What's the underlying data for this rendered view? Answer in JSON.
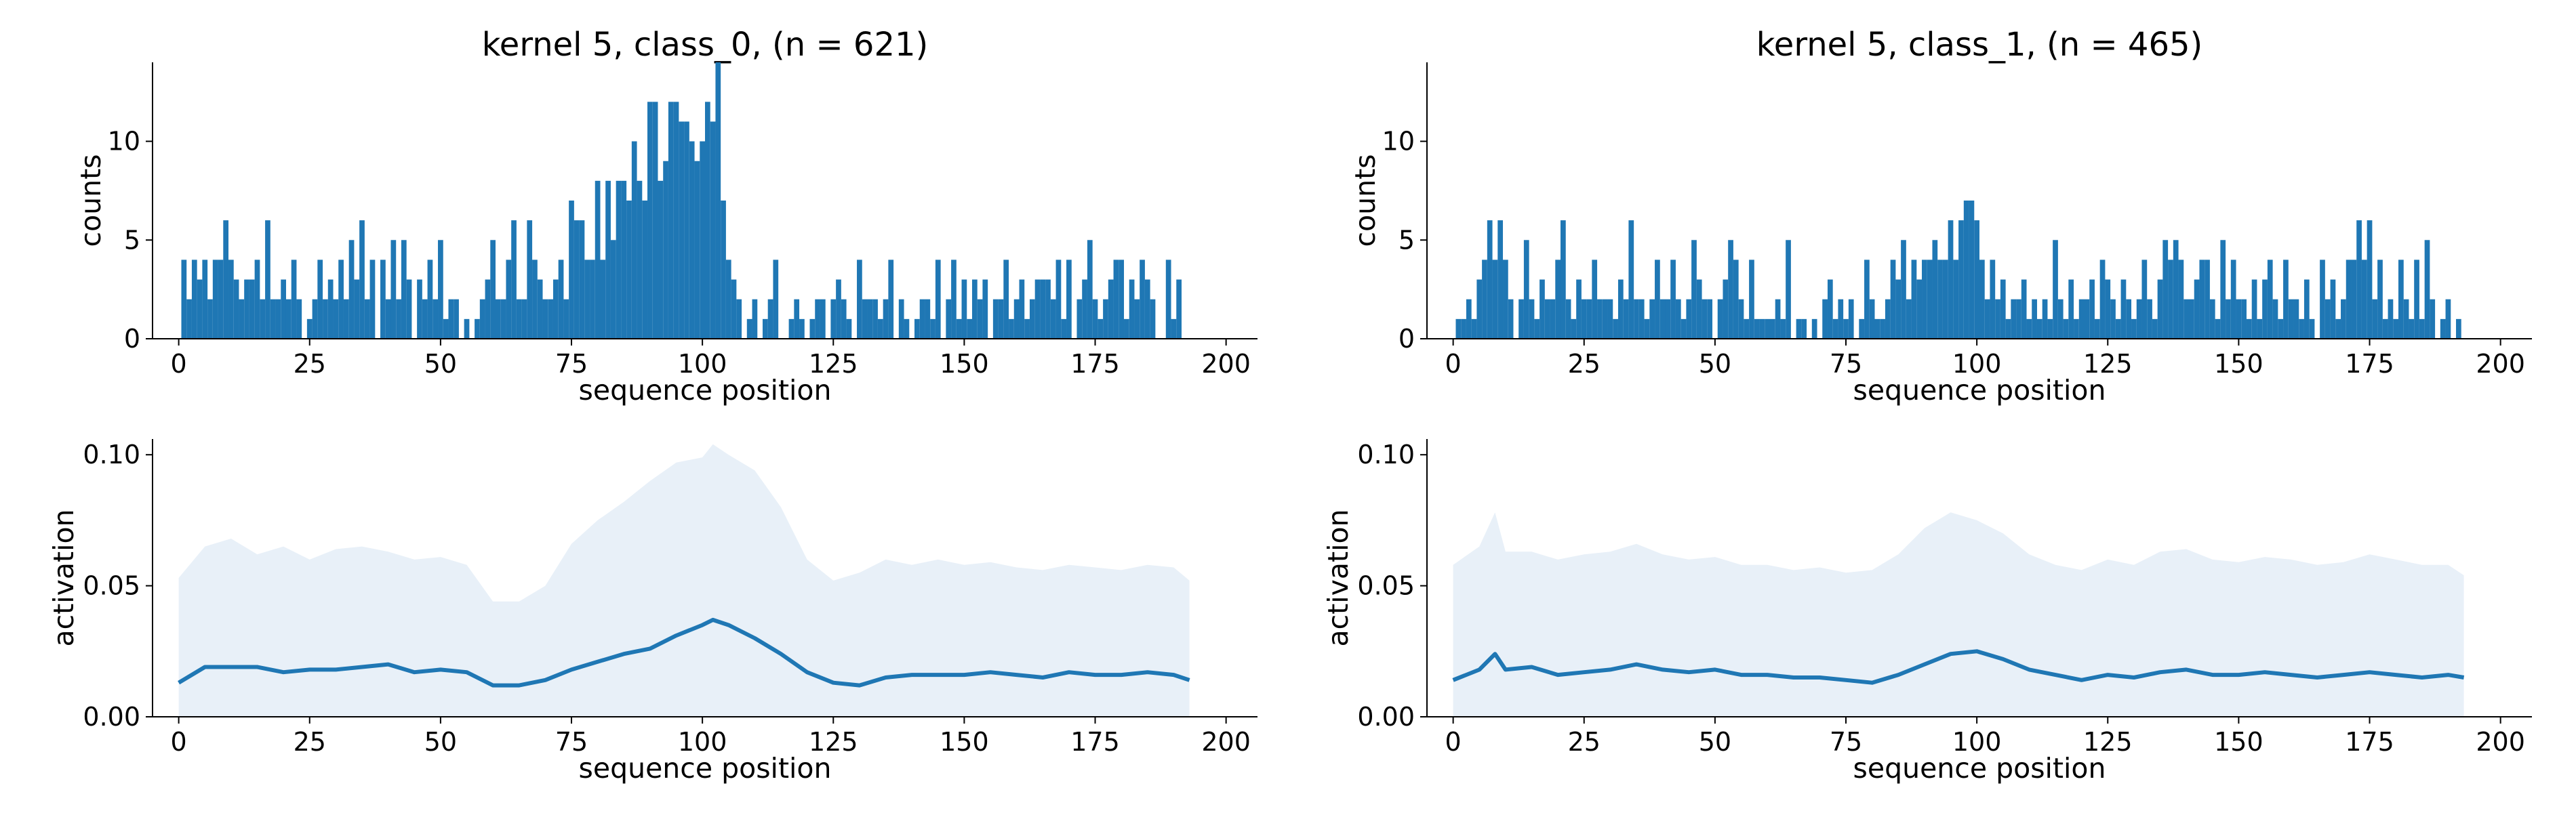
{
  "chart_data": [
    {
      "type": "bar",
      "title": "kernel 5, class_0, (n = 621)",
      "xlabel": "sequence position",
      "ylabel": "counts",
      "xlim": [
        -5,
        206
      ],
      "ylim": [
        0,
        14
      ],
      "xticks": [
        0,
        25,
        50,
        75,
        100,
        125,
        150,
        175,
        200
      ],
      "yticks": [
        0,
        5,
        10
      ],
      "color": "#1f77b4",
      "x": [
        1,
        2,
        3,
        4,
        5,
        6,
        7,
        8,
        9,
        10,
        11,
        12,
        13,
        14,
        15,
        16,
        17,
        18,
        19,
        20,
        21,
        22,
        23,
        24,
        25,
        26,
        27,
        28,
        29,
        30,
        31,
        32,
        33,
        34,
        35,
        36,
        37,
        38,
        39,
        40,
        41,
        42,
        43,
        44,
        45,
        46,
        47,
        48,
        49,
        50,
        51,
        52,
        53,
        54,
        55,
        56,
        57,
        58,
        59,
        60,
        61,
        62,
        63,
        64,
        65,
        66,
        67,
        68,
        69,
        70,
        71,
        72,
        73,
        74,
        75,
        76,
        77,
        78,
        79,
        80,
        81,
        82,
        83,
        84,
        85,
        86,
        87,
        88,
        89,
        90,
        91,
        92,
        93,
        94,
        95,
        96,
        97,
        98,
        99,
        100,
        101,
        102,
        103,
        104,
        105,
        106,
        107,
        108,
        109,
        110,
        111,
        112,
        113,
        114,
        115,
        116,
        117,
        118,
        119,
        120,
        121,
        122,
        123,
        124,
        125,
        126,
        127,
        128,
        129,
        130,
        131,
        132,
        133,
        134,
        135,
        136,
        137,
        138,
        139,
        140,
        141,
        142,
        143,
        144,
        145,
        146,
        147,
        148,
        149,
        150,
        151,
        152,
        153,
        154,
        155,
        156,
        157,
        158,
        159,
        160,
        161,
        162,
        163,
        164,
        165,
        166,
        167,
        168,
        169,
        170,
        171,
        172,
        173,
        174,
        175,
        176,
        177,
        178,
        179,
        180,
        181,
        182,
        183,
        184,
        185,
        186,
        187,
        188,
        189,
        190,
        191,
        192
      ],
      "values": [
        4,
        2,
        4,
        3,
        4,
        2,
        4,
        4,
        6,
        4,
        3,
        2,
        3,
        3,
        4,
        2,
        6,
        2,
        2,
        3,
        2,
        4,
        2,
        0,
        1,
        2,
        4,
        2,
        3,
        2,
        4,
        2,
        5,
        3,
        6,
        2,
        4,
        0,
        4,
        2,
        5,
        2,
        5,
        3,
        0,
        3,
        2,
        4,
        2,
        5,
        1,
        2,
        2,
        0,
        1,
        0,
        1,
        2,
        3,
        5,
        2,
        2,
        4,
        6,
        2,
        2,
        6,
        4,
        3,
        2,
        2,
        3,
        4,
        2,
        7,
        6,
        6,
        4,
        4,
        8,
        4,
        8,
        5,
        8,
        8,
        7,
        10,
        8,
        7,
        12,
        12,
        8,
        9,
        12,
        12,
        11,
        11,
        10,
        9,
        10,
        12,
        11,
        14,
        7,
        4,
        3,
        2,
        0,
        1,
        2,
        0,
        1,
        2,
        4,
        0,
        0,
        1,
        2,
        1,
        0,
        1,
        2,
        2,
        0,
        2,
        3,
        2,
        1,
        0,
        4,
        2,
        2,
        2,
        1,
        2,
        4,
        0,
        2,
        1,
        0,
        1,
        2,
        2,
        1,
        4,
        0,
        2,
        4,
        1,
        3,
        1,
        3,
        2,
        3,
        0,
        2,
        2,
        4,
        1,
        2,
        3,
        1,
        2,
        3,
        3,
        3,
        2,
        4,
        1,
        4,
        0,
        2,
        3,
        5,
        2,
        1,
        2,
        3,
        4,
        4,
        1,
        3,
        2,
        4,
        3,
        2,
        0,
        0,
        4,
        1,
        3,
        0
      ]
    },
    {
      "type": "bar",
      "title": "kernel 5, class_1, (n = 465)",
      "xlabel": "sequence position",
      "ylabel": "counts",
      "xlim": [
        -5,
        206
      ],
      "ylim": [
        0,
        14
      ],
      "xticks": [
        0,
        25,
        50,
        75,
        100,
        125,
        150,
        175,
        200
      ],
      "yticks": [
        0,
        5,
        10
      ],
      "color": "#1f77b4",
      "x": [
        1,
        2,
        3,
        4,
        5,
        6,
        7,
        8,
        9,
        10,
        11,
        12,
        13,
        14,
        15,
        16,
        17,
        18,
        19,
        20,
        21,
        22,
        23,
        24,
        25,
        26,
        27,
        28,
        29,
        30,
        31,
        32,
        33,
        34,
        35,
        36,
        37,
        38,
        39,
        40,
        41,
        42,
        43,
        44,
        45,
        46,
        47,
        48,
        49,
        50,
        51,
        52,
        53,
        54,
        55,
        56,
        57,
        58,
        59,
        60,
        61,
        62,
        63,
        64,
        65,
        66,
        67,
        68,
        69,
        70,
        71,
        72,
        73,
        74,
        75,
        76,
        77,
        78,
        79,
        80,
        81,
        82,
        83,
        84,
        85,
        86,
        87,
        88,
        89,
        90,
        91,
        92,
        93,
        94,
        95,
        96,
        97,
        98,
        99,
        100,
        101,
        102,
        103,
        104,
        105,
        106,
        107,
        108,
        109,
        110,
        111,
        112,
        113,
        114,
        115,
        116,
        117,
        118,
        119,
        120,
        121,
        122,
        123,
        124,
        125,
        126,
        127,
        128,
        129,
        130,
        131,
        132,
        133,
        134,
        135,
        136,
        137,
        138,
        139,
        140,
        141,
        142,
        143,
        144,
        145,
        146,
        147,
        148,
        149,
        150,
        151,
        152,
        153,
        154,
        155,
        156,
        157,
        158,
        159,
        160,
        161,
        162,
        163,
        164,
        165,
        166,
        167,
        168,
        169,
        170,
        171,
        172,
        173,
        174,
        175,
        176,
        177,
        178,
        179,
        180,
        181,
        182,
        183,
        184,
        185,
        186,
        187,
        188,
        189,
        190,
        191,
        192
      ],
      "values": [
        1,
        1,
        2,
        1,
        3,
        4,
        6,
        4,
        6,
        4,
        2,
        0,
        2,
        5,
        2,
        1,
        3,
        2,
        2,
        4,
        6,
        2,
        1,
        3,
        2,
        2,
        4,
        2,
        2,
        2,
        1,
        3,
        2,
        6,
        2,
        2,
        1,
        2,
        4,
        2,
        2,
        4,
        2,
        1,
        2,
        5,
        3,
        2,
        2,
        0,
        2,
        3,
        5,
        4,
        2,
        1,
        4,
        1,
        1,
        1,
        1,
        2,
        1,
        5,
        0,
        1,
        1,
        0,
        1,
        0,
        2,
        3,
        1,
        2,
        1,
        2,
        0,
        1,
        4,
        2,
        1,
        1,
        2,
        4,
        3,
        5,
        2,
        4,
        3,
        4,
        4,
        5,
        4,
        4,
        6,
        4,
        6,
        7,
        7,
        6,
        4,
        2,
        4,
        2,
        3,
        1,
        2,
        2,
        3,
        1,
        2,
        1,
        2,
        1,
        5,
        2,
        1,
        3,
        1,
        2,
        2,
        3,
        1,
        4,
        3,
        2,
        1,
        3,
        2,
        1,
        2,
        4,
        2,
        1,
        3,
        5,
        4,
        5,
        4,
        2,
        2,
        3,
        4,
        4,
        2,
        1,
        5,
        2,
        4,
        2,
        2,
        1,
        3,
        1,
        3,
        4,
        2,
        1,
        4,
        2,
        2,
        1,
        3,
        1,
        0,
        4,
        2,
        3,
        1,
        2,
        4,
        4,
        6,
        4,
        6,
        2,
        4,
        1,
        2,
        1,
        4,
        2,
        1,
        4,
        1,
        5,
        2,
        0,
        1,
        2,
        0,
        1
      ]
    },
    {
      "type": "area",
      "title": "",
      "xlabel": "sequence position",
      "ylabel": "activation",
      "xlim": [
        -5,
        206
      ],
      "ylim": [
        0,
        0.106
      ],
      "xticks": [
        0,
        25,
        50,
        75,
        100,
        125,
        150,
        175,
        200
      ],
      "yticks": [
        0.0,
        0.05,
        0.1
      ],
      "ytick_labels": [
        "0.00",
        "0.05",
        "0.10"
      ],
      "series": [
        {
          "role": "mean",
          "color": "#1f77b4",
          "x": [
            0,
            5,
            10,
            15,
            20,
            25,
            30,
            35,
            40,
            45,
            50,
            55,
            60,
            65,
            70,
            75,
            80,
            85,
            90,
            95,
            100,
            102,
            105,
            110,
            115,
            120,
            125,
            130,
            135,
            140,
            145,
            150,
            155,
            160,
            165,
            170,
            175,
            180,
            185,
            190,
            193
          ],
          "values": [
            0.013,
            0.019,
            0.019,
            0.019,
            0.017,
            0.018,
            0.018,
            0.019,
            0.02,
            0.017,
            0.018,
            0.017,
            0.012,
            0.012,
            0.014,
            0.018,
            0.021,
            0.024,
            0.026,
            0.031,
            0.035,
            0.037,
            0.035,
            0.03,
            0.024,
            0.017,
            0.013,
            0.012,
            0.015,
            0.016,
            0.016,
            0.016,
            0.017,
            0.016,
            0.015,
            0.017,
            0.016,
            0.016,
            0.017,
            0.016,
            0.014
          ]
        },
        {
          "role": "upper",
          "color": "#e8f0f8",
          "x": [
            0,
            5,
            10,
            15,
            20,
            25,
            30,
            35,
            40,
            45,
            50,
            55,
            60,
            65,
            70,
            75,
            80,
            85,
            90,
            95,
            100,
            102,
            105,
            110,
            115,
            120,
            125,
            130,
            135,
            140,
            145,
            150,
            155,
            160,
            165,
            170,
            175,
            180,
            185,
            190,
            193
          ],
          "values": [
            0.053,
            0.065,
            0.068,
            0.062,
            0.065,
            0.06,
            0.064,
            0.065,
            0.063,
            0.06,
            0.061,
            0.058,
            0.044,
            0.044,
            0.05,
            0.066,
            0.075,
            0.082,
            0.09,
            0.097,
            0.099,
            0.104,
            0.1,
            0.094,
            0.08,
            0.06,
            0.052,
            0.055,
            0.06,
            0.058,
            0.06,
            0.058,
            0.059,
            0.057,
            0.056,
            0.058,
            0.057,
            0.056,
            0.058,
            0.057,
            0.052
          ]
        }
      ]
    },
    {
      "type": "area",
      "title": "",
      "xlabel": "sequence position",
      "ylabel": "activation",
      "xlim": [
        -5,
        206
      ],
      "ylim": [
        0,
        0.106
      ],
      "xticks": [
        0,
        25,
        50,
        75,
        100,
        125,
        150,
        175,
        200
      ],
      "yticks": [
        0.0,
        0.05,
        0.1
      ],
      "ytick_labels": [
        "0.00",
        "0.05",
        "0.10"
      ],
      "series": [
        {
          "role": "mean",
          "color": "#1f77b4",
          "x": [
            0,
            5,
            8,
            10,
            15,
            20,
            25,
            30,
            35,
            40,
            45,
            50,
            55,
            60,
            65,
            70,
            75,
            80,
            85,
            90,
            95,
            100,
            105,
            110,
            115,
            120,
            125,
            130,
            135,
            140,
            145,
            150,
            155,
            160,
            165,
            170,
            175,
            180,
            185,
            190,
            193
          ],
          "values": [
            0.014,
            0.018,
            0.024,
            0.018,
            0.019,
            0.016,
            0.017,
            0.018,
            0.02,
            0.018,
            0.017,
            0.018,
            0.016,
            0.016,
            0.015,
            0.015,
            0.014,
            0.013,
            0.016,
            0.02,
            0.024,
            0.025,
            0.022,
            0.018,
            0.016,
            0.014,
            0.016,
            0.015,
            0.017,
            0.018,
            0.016,
            0.016,
            0.017,
            0.016,
            0.015,
            0.016,
            0.017,
            0.016,
            0.015,
            0.016,
            0.015
          ]
        },
        {
          "role": "upper",
          "color": "#e8f0f8",
          "x": [
            0,
            5,
            8,
            10,
            15,
            20,
            25,
            30,
            35,
            40,
            45,
            50,
            55,
            60,
            65,
            70,
            75,
            80,
            85,
            90,
            95,
            100,
            105,
            110,
            115,
            120,
            125,
            130,
            135,
            140,
            145,
            150,
            155,
            160,
            165,
            170,
            175,
            180,
            185,
            190,
            193
          ],
          "values": [
            0.058,
            0.065,
            0.078,
            0.063,
            0.063,
            0.06,
            0.062,
            0.063,
            0.066,
            0.062,
            0.06,
            0.061,
            0.058,
            0.058,
            0.056,
            0.057,
            0.055,
            0.056,
            0.062,
            0.072,
            0.078,
            0.075,
            0.07,
            0.062,
            0.058,
            0.056,
            0.06,
            0.058,
            0.063,
            0.064,
            0.06,
            0.059,
            0.061,
            0.06,
            0.058,
            0.059,
            0.062,
            0.06,
            0.058,
            0.058,
            0.054
          ]
        }
      ]
    }
  ]
}
